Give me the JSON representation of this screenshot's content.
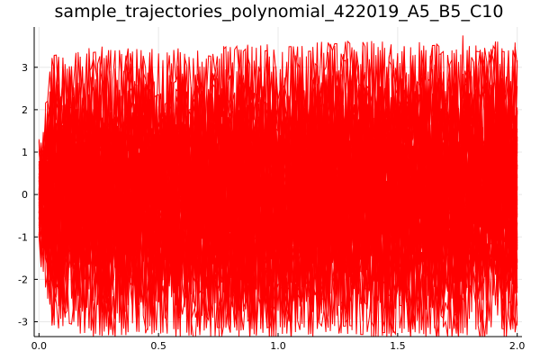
{
  "chart_data": {
    "type": "line",
    "title": "sample_trajectories_polynomial_422019_A5_B5_C10",
    "xlabel": "",
    "ylabel": "",
    "xlim": [
      -0.02,
      2.02
    ],
    "ylim": [
      -3.35,
      3.95
    ],
    "x_ticks": [
      {
        "value": 0.0,
        "label": "0.0"
      },
      {
        "value": 0.5,
        "label": "0.5"
      },
      {
        "value": 1.0,
        "label": "1.0"
      },
      {
        "value": 1.5,
        "label": "1.5"
      },
      {
        "value": 2.0,
        "label": "2.0"
      }
    ],
    "y_ticks": [
      {
        "value": -3,
        "label": "-3"
      },
      {
        "value": -2,
        "label": "-2"
      },
      {
        "value": -1,
        "label": "-1"
      },
      {
        "value": 0,
        "label": "0"
      },
      {
        "value": 1,
        "label": "1"
      },
      {
        "value": 2,
        "label": "2"
      },
      {
        "value": 3,
        "label": "3"
      }
    ],
    "grid": true,
    "legend": false,
    "series_color": "#ff0000",
    "n_trajectories": 60,
    "x_start": 0.0,
    "x_end": 2.0,
    "y_max": 3.75,
    "y_min": -3.2,
    "envelope": {
      "x": [
        0.0,
        0.05,
        0.25,
        0.5,
        0.75,
        1.0,
        1.25,
        1.5,
        1.75,
        2.0
      ],
      "upper": [
        1.1,
        2.4,
        2.5,
        2.45,
        2.5,
        2.55,
        2.6,
        2.6,
        2.65,
        2.6
      ],
      "lower": [
        -0.9,
        -2.2,
        -2.4,
        -2.35,
        -2.4,
        -2.4,
        -2.35,
        -2.4,
        -2.4,
        -2.35
      ]
    }
  }
}
